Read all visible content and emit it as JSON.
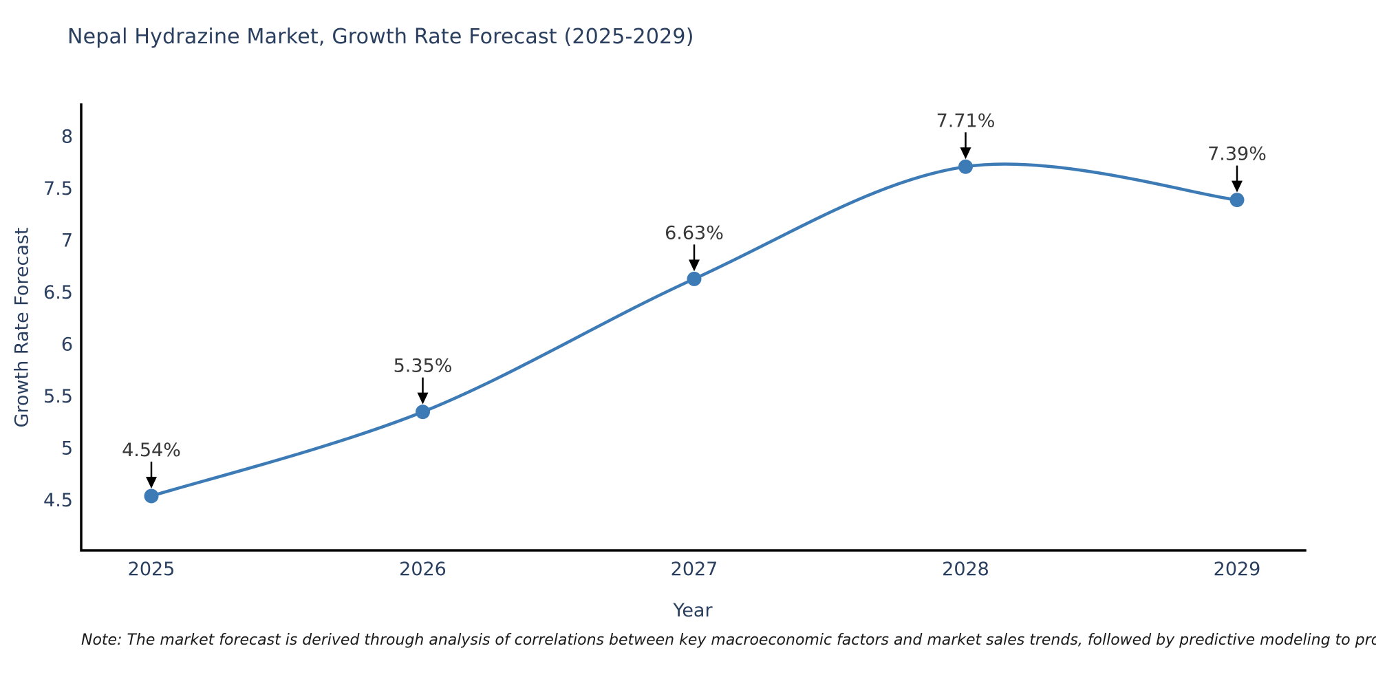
{
  "title": "Nepal Hydrazine Market, Growth Rate Forecast (2025-2029)",
  "note": "Note: The market forecast is derived through analysis of correlations between key macroeconomic factors and market sales trends, followed by predictive modeling to project future sales",
  "chart_data": {
    "type": "line",
    "title": "Nepal Hydrazine Market, Growth Rate Forecast (2025-2029)",
    "x": [
      "2025",
      "2026",
      "2027",
      "2028",
      "2029"
    ],
    "series": [
      {
        "name": "Growth Rate Forecast",
        "values": [
          4.54,
          5.35,
          6.63,
          7.71,
          7.39
        ]
      }
    ],
    "point_labels": [
      "4.54%",
      "5.35%",
      "6.63%",
      "7.71%",
      "7.39%"
    ],
    "xlabel": "Year",
    "ylabel": "Growth Rate Forecast",
    "yticks": [
      4.5,
      5,
      5.5,
      6,
      6.5,
      7,
      7.5,
      8
    ],
    "ylim": [
      4.02,
      8.32
    ],
    "grid": false,
    "line_shape": "spline",
    "legend_position": "none",
    "colors": {
      "line": "#3d7bb6",
      "marker": "#3d7bb6",
      "arrow": "#000000",
      "axis_line": "#000000",
      "tick_text": "#2a3f5f",
      "annotation_text": "#383838",
      "title_text": "#2a3f5f"
    }
  }
}
